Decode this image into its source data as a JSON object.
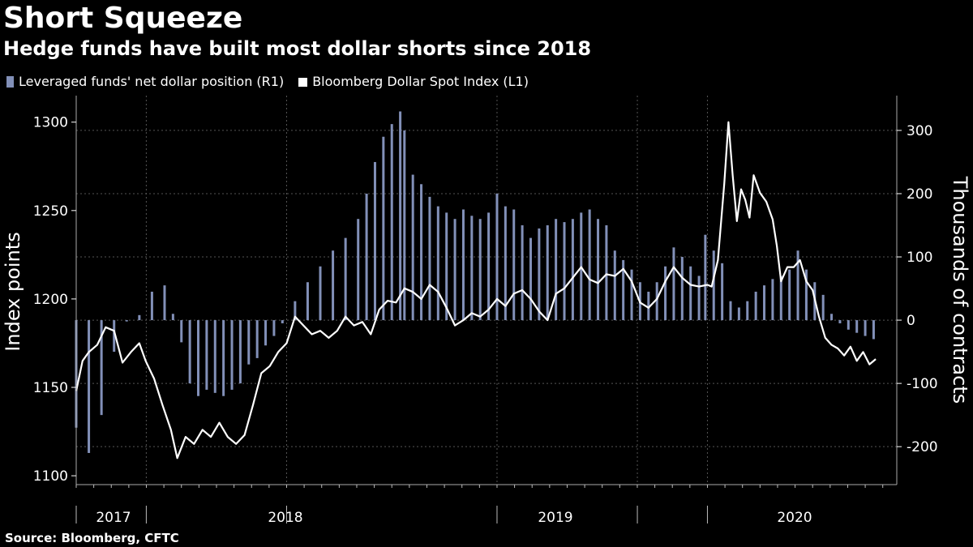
{
  "title": "Short Squeeze",
  "subtitle": "Hedge funds have built most dollar shorts since 2018",
  "source": "Source: Bloomberg, CFTC",
  "legend": {
    "bars": "Leveraged funds' net dollar position (R1)",
    "line": "Bloomberg Dollar Spot Index (L1)"
  },
  "colors": {
    "bars": "#8290b8",
    "line": "#ffffff",
    "grid": "#555555",
    "background": "#000000"
  },
  "chart_data": {
    "type": "bar+line",
    "left_axis": {
      "title": "Index points",
      "ticks": [
        1100,
        1150,
        1200,
        1250,
        1300
      ],
      "range": [
        1095,
        1315
      ]
    },
    "right_axis": {
      "title": "Thousands of contracts",
      "ticks": [
        -200,
        -100,
        0,
        100,
        200,
        300
      ],
      "tick_labels": [
        "-200",
        "-100",
        "0",
        "100",
        "200",
        "300"
      ],
      "range": [
        -260,
        355
      ]
    },
    "x_labels": [
      "2017",
      "2018",
      "2019",
      "2020"
    ],
    "x_range": [
      2017.0,
      2020.9
    ],
    "year_bounds": [
      2017.0,
      2017.333,
      2018.0,
      2019.0,
      2019.667,
      2020.0
    ],
    "series": [
      {
        "name": "Leveraged funds' net dollar position",
        "axis": "right",
        "type": "bar",
        "points": [
          [
            2017.0,
            -170
          ],
          [
            2017.06,
            -210
          ],
          [
            2017.12,
            -150
          ],
          [
            2017.18,
            -50
          ],
          [
            2017.24,
            -2
          ],
          [
            2017.3,
            8
          ],
          [
            2017.36,
            45
          ],
          [
            2017.42,
            55
          ],
          [
            2017.46,
            10
          ],
          [
            2017.5,
            -35
          ],
          [
            2017.54,
            -100
          ],
          [
            2017.58,
            -120
          ],
          [
            2017.62,
            -110
          ],
          [
            2017.66,
            -115
          ],
          [
            2017.7,
            -120
          ],
          [
            2017.74,
            -110
          ],
          [
            2017.78,
            -100
          ],
          [
            2017.82,
            -70
          ],
          [
            2017.86,
            -60
          ],
          [
            2017.9,
            -40
          ],
          [
            2017.94,
            -25
          ],
          [
            2017.98,
            -5
          ],
          [
            2018.04,
            30
          ],
          [
            2018.1,
            60
          ],
          [
            2018.16,
            85
          ],
          [
            2018.22,
            110
          ],
          [
            2018.28,
            130
          ],
          [
            2018.34,
            160
          ],
          [
            2018.38,
            200
          ],
          [
            2018.42,
            250
          ],
          [
            2018.46,
            290
          ],
          [
            2018.5,
            310
          ],
          [
            2018.54,
            330
          ],
          [
            2018.56,
            300
          ],
          [
            2018.6,
            230
          ],
          [
            2018.64,
            215
          ],
          [
            2018.68,
            195
          ],
          [
            2018.72,
            180
          ],
          [
            2018.76,
            170
          ],
          [
            2018.8,
            160
          ],
          [
            2018.84,
            175
          ],
          [
            2018.88,
            165
          ],
          [
            2018.92,
            160
          ],
          [
            2018.96,
            170
          ],
          [
            2019.0,
            200
          ],
          [
            2019.04,
            180
          ],
          [
            2019.08,
            175
          ],
          [
            2019.12,
            150
          ],
          [
            2019.16,
            130
          ],
          [
            2019.2,
            145
          ],
          [
            2019.24,
            150
          ],
          [
            2019.28,
            160
          ],
          [
            2019.32,
            155
          ],
          [
            2019.36,
            160
          ],
          [
            2019.4,
            170
          ],
          [
            2019.44,
            175
          ],
          [
            2019.48,
            160
          ],
          [
            2019.52,
            150
          ],
          [
            2019.56,
            110
          ],
          [
            2019.6,
            95
          ],
          [
            2019.64,
            80
          ],
          [
            2019.68,
            60
          ],
          [
            2019.72,
            45
          ],
          [
            2019.76,
            60
          ],
          [
            2019.8,
            85
          ],
          [
            2019.84,
            115
          ],
          [
            2019.88,
            100
          ],
          [
            2019.92,
            85
          ],
          [
            2019.96,
            70
          ],
          [
            2019.99,
            135
          ],
          [
            2020.03,
            110
          ],
          [
            2020.07,
            90
          ],
          [
            2020.11,
            30
          ],
          [
            2020.15,
            20
          ],
          [
            2020.19,
            30
          ],
          [
            2020.23,
            45
          ],
          [
            2020.27,
            55
          ],
          [
            2020.31,
            65
          ],
          [
            2020.35,
            70
          ],
          [
            2020.39,
            80
          ],
          [
            2020.43,
            110
          ],
          [
            2020.47,
            80
          ],
          [
            2020.51,
            60
          ],
          [
            2020.55,
            40
          ],
          [
            2020.59,
            10
          ],
          [
            2020.63,
            -5
          ],
          [
            2020.67,
            -15
          ],
          [
            2020.71,
            -20
          ],
          [
            2020.75,
            -25
          ],
          [
            2020.79,
            -30
          ]
        ]
      },
      {
        "name": "Bloomberg Dollar Spot Index",
        "axis": "left",
        "type": "line",
        "points": [
          [
            2017.0,
            1148
          ],
          [
            2017.03,
            1165
          ],
          [
            2017.06,
            1170
          ],
          [
            2017.1,
            1174
          ],
          [
            2017.14,
            1184
          ],
          [
            2017.18,
            1182
          ],
          [
            2017.22,
            1164
          ],
          [
            2017.26,
            1170
          ],
          [
            2017.3,
            1175
          ],
          [
            2017.33,
            1165
          ],
          [
            2017.37,
            1155
          ],
          [
            2017.41,
            1140
          ],
          [
            2017.45,
            1126
          ],
          [
            2017.48,
            1110
          ],
          [
            2017.52,
            1122
          ],
          [
            2017.56,
            1118
          ],
          [
            2017.6,
            1126
          ],
          [
            2017.64,
            1122
          ],
          [
            2017.68,
            1130
          ],
          [
            2017.72,
            1122
          ],
          [
            2017.76,
            1118
          ],
          [
            2017.8,
            1123
          ],
          [
            2017.84,
            1140
          ],
          [
            2017.88,
            1158
          ],
          [
            2017.92,
            1162
          ],
          [
            2017.96,
            1170
          ],
          [
            2018.0,
            1175
          ],
          [
            2018.04,
            1190
          ],
          [
            2018.08,
            1185
          ],
          [
            2018.12,
            1180
          ],
          [
            2018.16,
            1182
          ],
          [
            2018.2,
            1178
          ],
          [
            2018.24,
            1182
          ],
          [
            2018.28,
            1190
          ],
          [
            2018.32,
            1185
          ],
          [
            2018.36,
            1187
          ],
          [
            2018.4,
            1180
          ],
          [
            2018.44,
            1194
          ],
          [
            2018.48,
            1199
          ],
          [
            2018.52,
            1198
          ],
          [
            2018.56,
            1206
          ],
          [
            2018.6,
            1204
          ],
          [
            2018.64,
            1200
          ],
          [
            2018.68,
            1208
          ],
          [
            2018.72,
            1204
          ],
          [
            2018.76,
            1195
          ],
          [
            2018.8,
            1185
          ],
          [
            2018.84,
            1188
          ],
          [
            2018.88,
            1192
          ],
          [
            2018.92,
            1190
          ],
          [
            2018.96,
            1194
          ],
          [
            2019.0,
            1200
          ],
          [
            2019.04,
            1196
          ],
          [
            2019.08,
            1203
          ],
          [
            2019.12,
            1205
          ],
          [
            2019.16,
            1200
          ],
          [
            2019.2,
            1193
          ],
          [
            2019.24,
            1188
          ],
          [
            2019.28,
            1203
          ],
          [
            2019.32,
            1206
          ],
          [
            2019.36,
            1212
          ],
          [
            2019.4,
            1218
          ],
          [
            2019.44,
            1211
          ],
          [
            2019.48,
            1209
          ],
          [
            2019.52,
            1214
          ],
          [
            2019.56,
            1213
          ],
          [
            2019.6,
            1217
          ],
          [
            2019.64,
            1210
          ],
          [
            2019.68,
            1198
          ],
          [
            2019.72,
            1195
          ],
          [
            2019.76,
            1200
          ],
          [
            2019.8,
            1210
          ],
          [
            2019.84,
            1218
          ],
          [
            2019.88,
            1212
          ],
          [
            2019.92,
            1208
          ],
          [
            2019.96,
            1207
          ],
          [
            2020.0,
            1208
          ],
          [
            2020.02,
            1207
          ],
          [
            2020.05,
            1222
          ],
          [
            2020.08,
            1265
          ],
          [
            2020.1,
            1300
          ],
          [
            2020.12,
            1270
          ],
          [
            2020.14,
            1244
          ],
          [
            2020.16,
            1262
          ],
          [
            2020.18,
            1256
          ],
          [
            2020.2,
            1246
          ],
          [
            2020.22,
            1270
          ],
          [
            2020.25,
            1260
          ],
          [
            2020.28,
            1255
          ],
          [
            2020.31,
            1245
          ],
          [
            2020.33,
            1230
          ],
          [
            2020.35,
            1210
          ],
          [
            2020.38,
            1218
          ],
          [
            2020.41,
            1218
          ],
          [
            2020.44,
            1222
          ],
          [
            2020.47,
            1210
          ],
          [
            2020.5,
            1205
          ],
          [
            2020.53,
            1190
          ],
          [
            2020.56,
            1178
          ],
          [
            2020.59,
            1174
          ],
          [
            2020.62,
            1172
          ],
          [
            2020.65,
            1168
          ],
          [
            2020.68,
            1173
          ],
          [
            2020.71,
            1165
          ],
          [
            2020.74,
            1170
          ],
          [
            2020.77,
            1163
          ],
          [
            2020.8,
            1166
          ]
        ]
      }
    ]
  }
}
